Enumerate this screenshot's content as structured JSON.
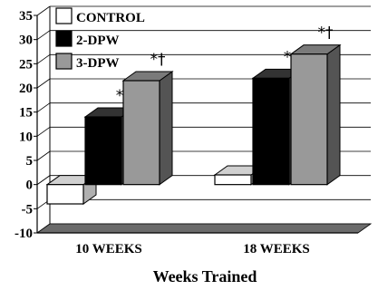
{
  "chart_data": {
    "type": "bar",
    "style": "3d",
    "categories": [
      "10 WEEKS",
      "18 WEEKS"
    ],
    "series": [
      {
        "name": "CONTROL",
        "values": [
          -4,
          2
        ],
        "color": "#ffffff",
        "annotations": [
          "",
          ""
        ]
      },
      {
        "name": "2-DPW",
        "values": [
          14,
          22
        ],
        "color": "#000000",
        "annotations": [
          "*",
          "*"
        ]
      },
      {
        "name": "3-DPW",
        "values": [
          21.5,
          27
        ],
        "color": "#999999",
        "annotations": [
          "*†",
          "*†"
        ]
      }
    ],
    "title": "",
    "xlabel": "Weeks Trained",
    "ylabel": "",
    "ylim": [
      -10,
      35
    ],
    "yticks": [
      -10,
      -5,
      0,
      5,
      10,
      15,
      20,
      25,
      30,
      35
    ],
    "grid": true,
    "legend_position": "top-left",
    "floor_color": "#6b6b6b"
  }
}
